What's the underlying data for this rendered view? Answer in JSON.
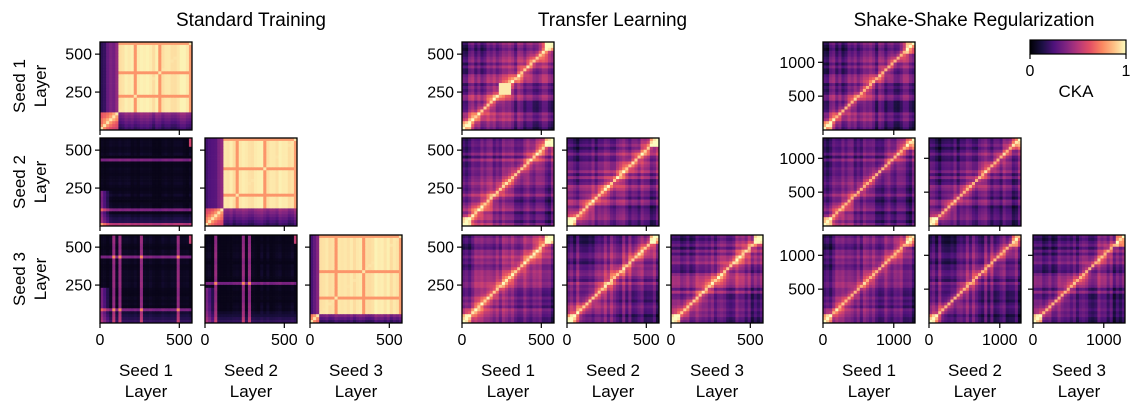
{
  "colors": {
    "colormap": "magma",
    "frame": "#000000",
    "background": "#ffffff"
  },
  "colorbar": {
    "label": "CKA",
    "min_label": "0",
    "max_label": "1",
    "range": [
      0,
      1
    ]
  },
  "chart_data": {
    "type": "heatmap",
    "description_of_layout": "3 groups of lower-triangular 3x3 panel grids; panel (row i, col j) compares layers of seed i (y) vs seed j (x)",
    "row_labels": [
      "Seed 1",
      "Seed 2",
      "Seed 3"
    ],
    "col_labels": [
      "Seed 1",
      "Seed 2",
      "Seed 3"
    ],
    "y_axis_label": "Layer",
    "x_axis_label": "Layer",
    "groups": [
      {
        "title": "Standard Training",
        "y_ticks": [
          "500",
          "250"
        ],
        "y_tick_values": [
          500,
          250
        ],
        "x_ticks": [
          "0",
          "500"
        ],
        "x_tick_values": [
          0,
          500
        ],
        "layer_range": [
          0,
          580
        ],
        "pattern": "standard"
      },
      {
        "title": "Transfer Learning",
        "y_ticks": [
          "500",
          "250"
        ],
        "y_tick_values": [
          500,
          250
        ],
        "x_ticks": [
          "0",
          "500"
        ],
        "x_tick_values": [
          0,
          500
        ],
        "layer_range": [
          0,
          580
        ],
        "pattern": "transfer"
      },
      {
        "title": "Shake-Shake Regularization",
        "y_ticks": [
          "1000",
          "500"
        ],
        "y_tick_values": [
          1000,
          500
        ],
        "x_ticks": [
          "0",
          "1000"
        ],
        "x_tick_values": [
          0,
          1000
        ],
        "layer_range": [
          0,
          1300
        ],
        "pattern": "shake"
      }
    ]
  }
}
